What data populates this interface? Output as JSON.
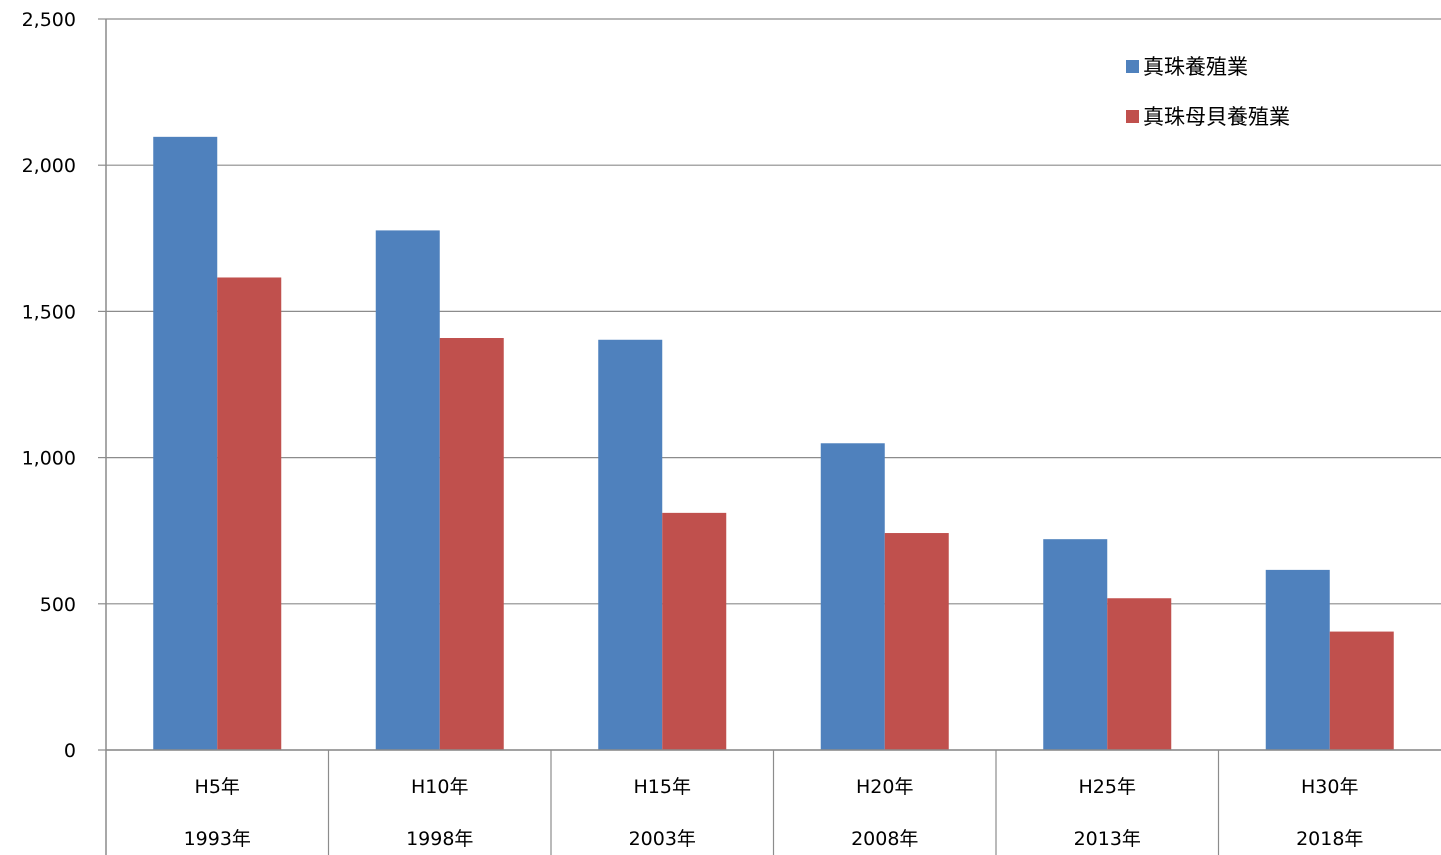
{
  "chart_data": {
    "type": "bar",
    "categories": [
      "H5年",
      "H10年",
      "H15年",
      "H20年",
      "H25年",
      "H30年"
    ],
    "categories_secondary": [
      "1993年",
      "1998年",
      "2003年",
      "2008年",
      "2013年",
      "2018年"
    ],
    "series": [
      {
        "name": "真珠養殖業",
        "color": "#4f81bd",
        "values": [
          2097,
          1777,
          1403,
          1049,
          721,
          616
        ]
      },
      {
        "name": "真珠母貝養殖業",
        "color": "#c0504d",
        "values": [
          1616,
          1409,
          811,
          742,
          519,
          405
        ]
      }
    ],
    "ylim": [
      0,
      2500
    ],
    "y_ticks": [
      0,
      500,
      1000,
      1500,
      2000,
      2500
    ],
    "y_tick_labels": [
      "0",
      "500",
      "1,000",
      "1,500",
      "2,000",
      "2,500"
    ],
    "grid": true,
    "legend_position": "top-right",
    "title": "",
    "xlabel": "",
    "ylabel": ""
  }
}
